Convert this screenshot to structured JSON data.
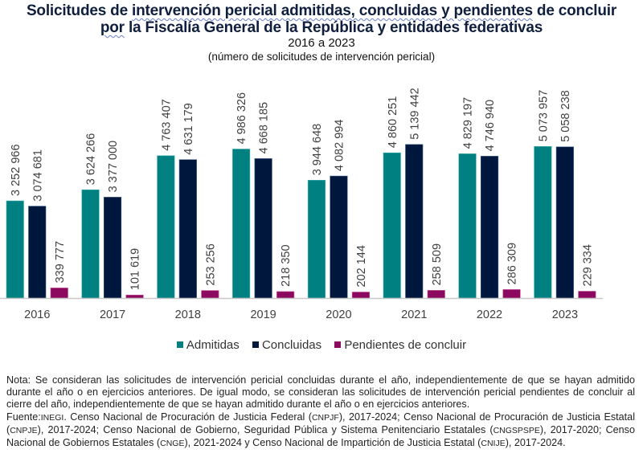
{
  "header": {
    "title_line1_parts": [
      "Solicitudes de ",
      "intervención pericial admitidas, concluidas y pendientes",
      " de concluir"
    ],
    "title_line2_parts": [
      "por",
      " la Fiscalía General de la República y entidades federativas"
    ],
    "subtitle": "2016 a 2023",
    "units": "(número de solicitudes de intervención pericial)"
  },
  "chart_data": {
    "type": "bar",
    "title": "Solicitudes de intervención pericial admitidas, concluidas y pendientes de concluir por la Fiscalía General de la República y entidades federativas",
    "subtitle": "2016 a 2023",
    "ylabel": "número de solicitudes de intervención pericial",
    "xlabel": "",
    "categories": [
      "2016",
      "2017",
      "2018",
      "2019",
      "2020",
      "2021",
      "2022",
      "2023"
    ],
    "series": [
      {
        "name": "Admitidas",
        "color": "#008080",
        "values": [
          3252966,
          3624266,
          4763407,
          4986326,
          3944648,
          4860251,
          4829197,
          5073957
        ],
        "labels": [
          "3 252 966",
          "3 624 266",
          "4 763 407",
          "4 986 326",
          "3 944 648",
          "4 860 251",
          "4 829 197",
          "5 073 957"
        ]
      },
      {
        "name": "Concluidas",
        "color": "#00173d",
        "values": [
          3074681,
          3377000,
          4631179,
          4668185,
          4082994,
          5139442,
          4746940,
          5058238
        ],
        "labels": [
          "3 074 681",
          "3 377 000",
          "4 631 179",
          "4 668 185",
          "4 082 994",
          "5 139 442",
          "4 746 940",
          "5 058 238"
        ]
      },
      {
        "name": "Pendientes de concluir",
        "color": "#8b0a5f",
        "values": [
          339777,
          101619,
          253256,
          218350,
          202144,
          258509,
          286309,
          229334
        ],
        "labels": [
          "339 777",
          "101 619",
          "253 256",
          "218 350",
          "202 144",
          "258 509",
          "286 309",
          "229 334"
        ]
      }
    ],
    "ylim": [
      0,
      5500000
    ],
    "grid": false,
    "legend_position": "bottom-center",
    "data_labels": "rotated-vertical"
  },
  "footer": {
    "note": "Nota: Se consideran las solicitudes de intervención pericial concluidas durante el año, independientemente de que se hayan admitido durante el año o en ejercicios anteriores. De igual modo, se consideran las solicitudes de intervención pericial pendientes de concluir al cierre del año, independientemente de que se hayan admitido durante el año o en ejercicios anteriores.",
    "source_parts": [
      {
        "t": "Fuente:",
        "sc": false
      },
      {
        "t": "INEGI",
        "sc": true
      },
      {
        "t": ". Censo Nacional de Procuración de Justicia Federal (",
        "sc": false
      },
      {
        "t": "CNPJF",
        "sc": true
      },
      {
        "t": "), 2017-2024; Censo Nacional de Procuración de Justicia Estatal (",
        "sc": false
      },
      {
        "t": "CNPJE",
        "sc": true
      },
      {
        "t": "), 2017-2024; Censo Nacional de Gobierno, Seguridad Pública y Sistema Penitenciario Estatales (",
        "sc": false
      },
      {
        "t": "CNGSPSPE",
        "sc": true
      },
      {
        "t": "), 2017-2020; Censo Nacional de Gobiernos Estatales (",
        "sc": false
      },
      {
        "t": "CNGE",
        "sc": true
      },
      {
        "t": "), 2021-2024 y Censo Nacional de Impartición de Justicia Estatal (",
        "sc": false
      },
      {
        "t": "CNIJE",
        "sc": true
      },
      {
        "t": "), 2017-2024.",
        "sc": false
      }
    ]
  }
}
